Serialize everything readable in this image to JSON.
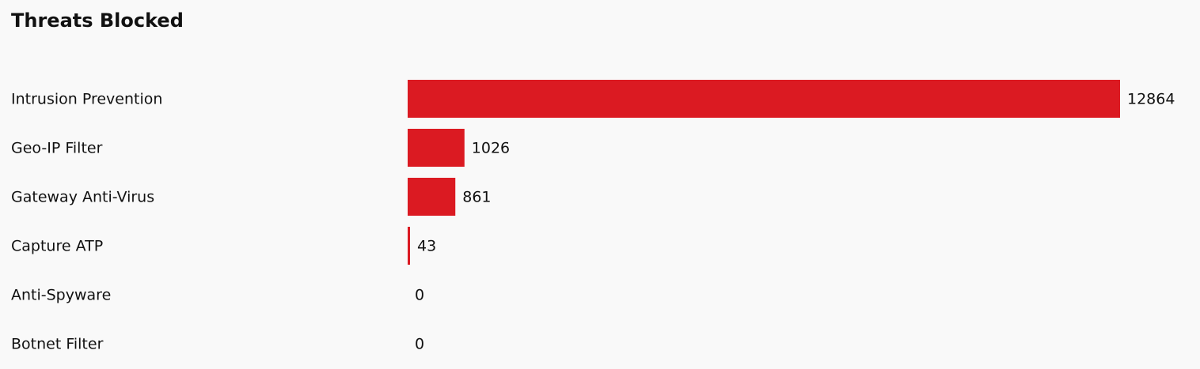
{
  "chart_data": {
    "type": "bar",
    "orientation": "horizontal",
    "title": "Threats Blocked",
    "categories": [
      "Intrusion Prevention",
      "Geo-IP Filter",
      "Gateway Anti-Virus",
      "Capture ATP",
      "Anti-Spyware",
      "Botnet Filter"
    ],
    "values": [
      12864,
      1026,
      861,
      43,
      0,
      0
    ],
    "color": "#db1a22"
  }
}
